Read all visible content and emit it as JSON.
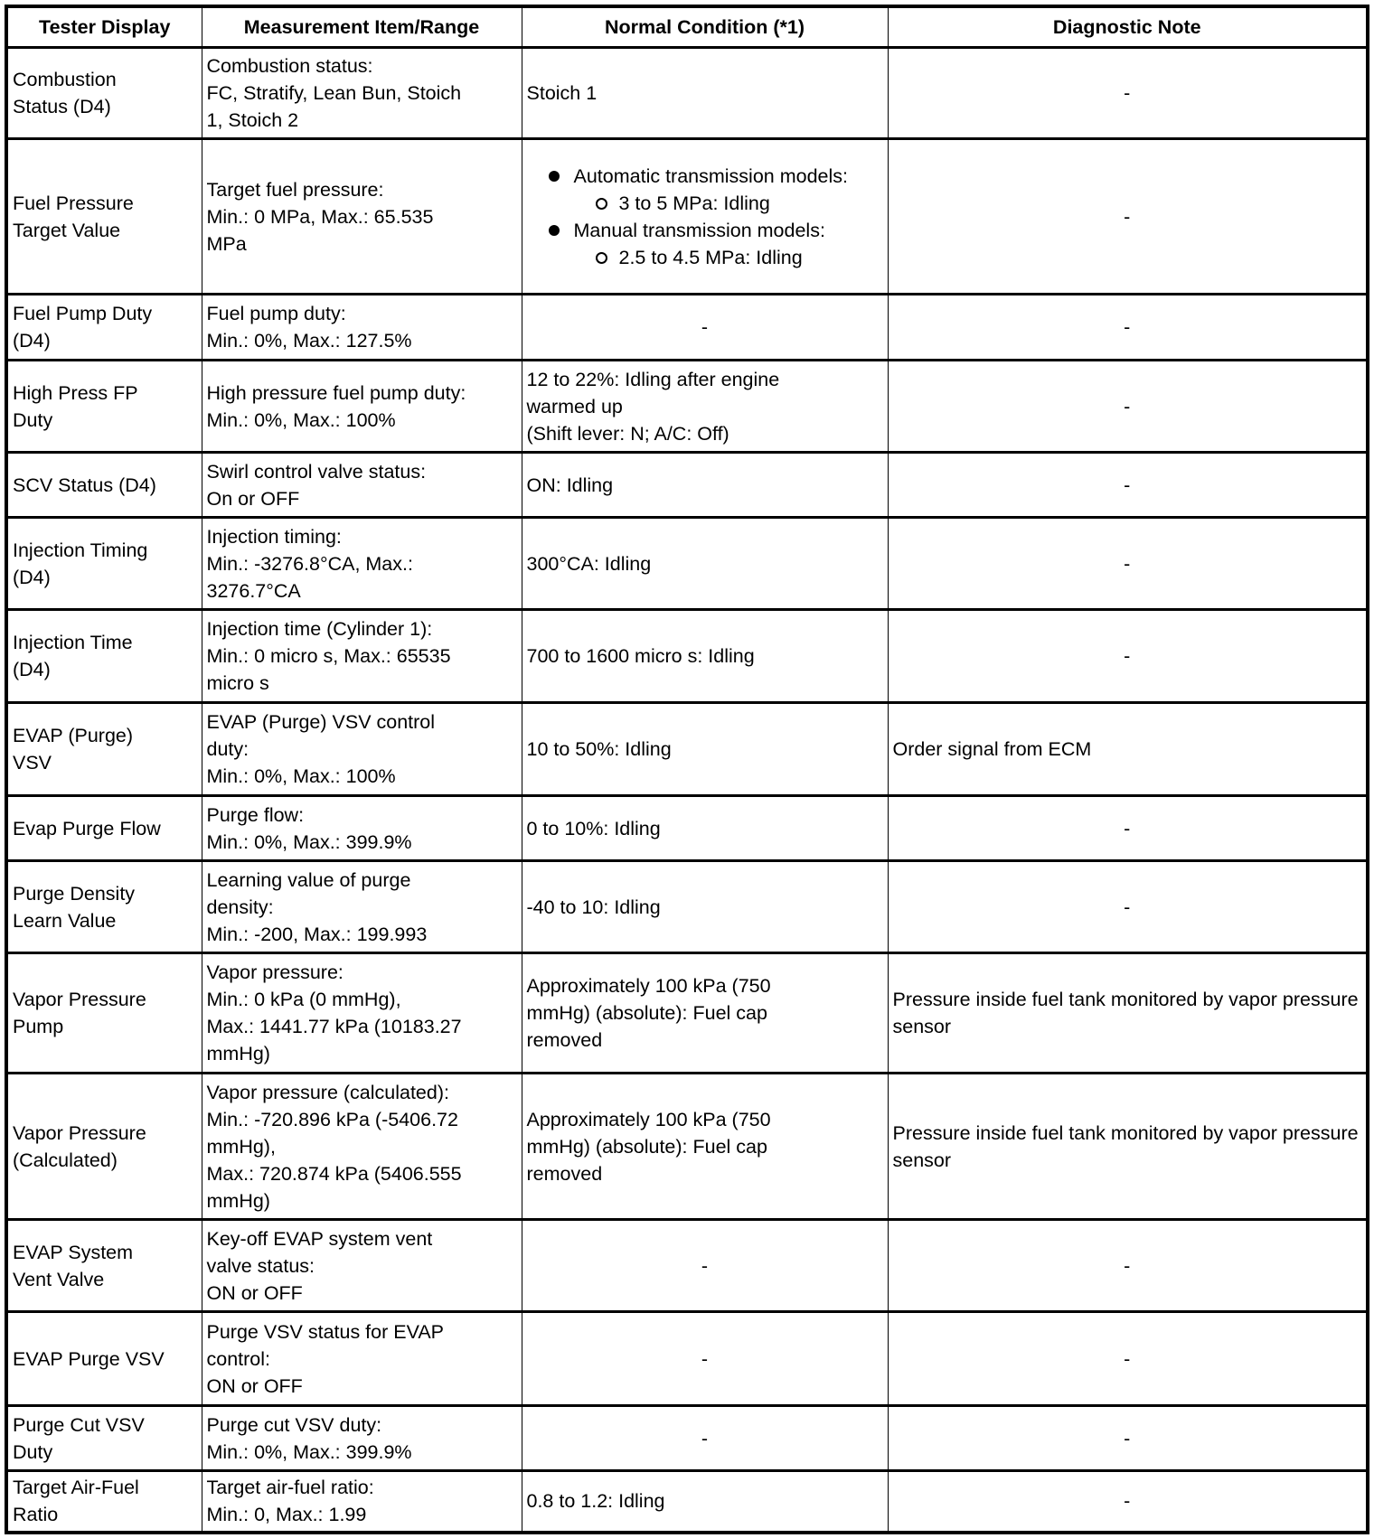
{
  "headers": [
    "Tester Display",
    "Measurement Item/Range",
    "Normal Condition (*1)",
    "Diagnostic Note"
  ],
  "rows": [
    {
      "tester": [
        "Combustion",
        "Status (D4)"
      ],
      "measure": [
        "Combustion status:",
        "FC, Stratify, Lean Bun, Stoich",
        "1, Stoich 2"
      ],
      "normal": [
        "Stoich 1"
      ],
      "note": "-"
    },
    {
      "tester": [
        "Fuel Pressure",
        "Target Value"
      ],
      "measure": [
        "Target fuel pressure:",
        "Min.: 0 MPa, Max.: 65.535",
        "MPa"
      ],
      "normal_list": [
        {
          "label": "Automatic transmission models:",
          "sub": "3 to 5 MPa: Idling"
        },
        {
          "label": "Manual transmission models:",
          "sub": "2.5 to 4.5 MPa: Idling"
        }
      ],
      "note": "-"
    },
    {
      "tester": [
        "Fuel Pump Duty",
        "(D4)"
      ],
      "measure": [
        "Fuel pump duty:",
        "Min.: 0%, Max.: 127.5%"
      ],
      "normal": [
        "-"
      ],
      "note": "-"
    },
    {
      "tester": [
        "High Press FP",
        "Duty"
      ],
      "measure": [
        "High pressure fuel pump duty:",
        "Min.: 0%, Max.: 100%"
      ],
      "normal": [
        "12 to 22%: Idling after engine",
        "warmed up",
        "(Shift lever: N; A/C: Off)"
      ],
      "note": "-"
    },
    {
      "tester": [
        "SCV Status (D4)"
      ],
      "measure": [
        "Swirl control valve status:",
        "On or OFF"
      ],
      "normal": [
        "ON: Idling"
      ],
      "note": "-"
    },
    {
      "tester": [
        "Injection Timing",
        "(D4)"
      ],
      "measure": [
        "Injection timing:",
        "Min.: -3276.8°CA, Max.:",
        "3276.7°CA"
      ],
      "normal": [
        "300°CA: Idling"
      ],
      "note": "-"
    },
    {
      "tester": [
        "Injection Time",
        "(D4)"
      ],
      "measure": [
        "Injection time (Cylinder 1):",
        "Min.: 0 micro s, Max.: 65535",
        "micro s"
      ],
      "normal": [
        "700 to 1600 micro s: Idling"
      ],
      "note": "-"
    },
    {
      "tester": [
        "EVAP (Purge)",
        "VSV"
      ],
      "measure": [
        "EVAP (Purge) VSV control",
        "duty:",
        "Min.: 0%, Max.: 100%"
      ],
      "normal": [
        "10 to 50%: Idling"
      ],
      "note": "Order signal from ECM"
    },
    {
      "tester": [
        "Evap Purge Flow"
      ],
      "measure": [
        "Purge flow:",
        "Min.: 0%, Max.: 399.9%"
      ],
      "normal": [
        "0 to 10%: Idling"
      ],
      "note": "-"
    },
    {
      "tester": [
        "Purge Density",
        "Learn Value"
      ],
      "measure": [
        "Learning value of purge",
        "density:",
        "Min.: -200, Max.: 199.993"
      ],
      "normal": [
        "-40 to 10: Idling"
      ],
      "note": "-"
    },
    {
      "tester": [
        "Vapor Pressure",
        "Pump"
      ],
      "measure": [
        "Vapor pressure:",
        "Min.: 0 kPa (0 mmHg),",
        "Max.: 1441.77 kPa (10183.27",
        "mmHg)"
      ],
      "normal": [
        "Approximately 100 kPa (750",
        "mmHg) (absolute): Fuel cap",
        "removed"
      ],
      "note": "Pressure inside fuel tank monitored by vapor pressure sensor"
    },
    {
      "tester": [
        "Vapor Pressure",
        "(Calculated)"
      ],
      "measure": [
        "Vapor pressure (calculated):",
        "Min.: -720.896 kPa (-5406.72",
        "mmHg),",
        "Max.: 720.874 kPa (5406.555",
        "mmHg)"
      ],
      "normal": [
        "Approximately 100 kPa (750",
        "mmHg) (absolute): Fuel cap",
        "removed"
      ],
      "note": "Pressure inside fuel tank monitored by vapor pressure sensor"
    },
    {
      "tester": [
        "EVAP System",
        "Vent Valve"
      ],
      "measure": [
        "Key-off EVAP system vent",
        "valve status:",
        "ON or OFF"
      ],
      "normal": [
        "-"
      ],
      "note": "-"
    },
    {
      "tester": [
        "EVAP Purge VSV"
      ],
      "measure": [
        "Purge VSV status for EVAP",
        "control:",
        "ON or OFF"
      ],
      "normal": [
        "-"
      ],
      "note": "-"
    },
    {
      "tester": [
        "Purge Cut VSV",
        "Duty"
      ],
      "measure": [
        "Purge cut VSV duty:",
        "Min.: 0%, Max.: 399.9%"
      ],
      "normal": [
        "-"
      ],
      "note": "-"
    },
    {
      "tester": [
        "Target Air-Fuel",
        "Ratio"
      ],
      "measure": [
        "Target air-fuel ratio:",
        "Min.: 0, Max.: 1.99"
      ],
      "normal": [
        "0.8 to 1.2: Idling"
      ],
      "note": "-"
    }
  ]
}
